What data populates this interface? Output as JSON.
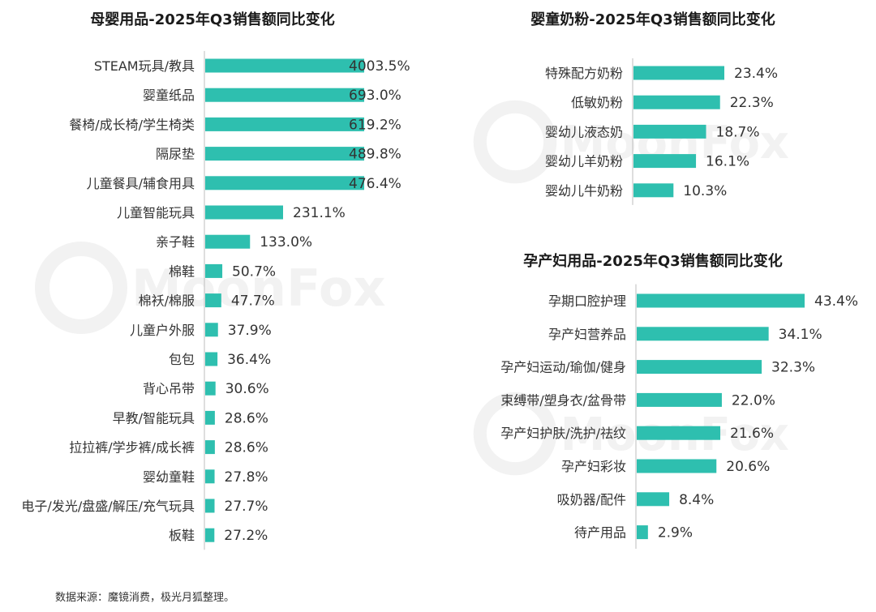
{
  "watermark_text": "MoonFox",
  "source_note": "数据来源：魔镜消费，极光月狐整理。",
  "colors": {
    "bar": "#2ebfaf",
    "axis": "#bdbdbd",
    "text": "#333333",
    "title": "#1a1a1a",
    "watermark": "#e8e8e8"
  },
  "chart_data": [
    {
      "type": "bar",
      "orientation": "horizontal",
      "title": "母婴用品-2025年Q3销售额同比变化",
      "categories": [
        "STEAM玩具/教具",
        "婴童纸品",
        "餐椅/成长椅/学生椅类",
        "隔尿垫",
        "儿童餐具/辅食用具",
        "儿童智能玩具",
        "亲子鞋",
        "棉鞋",
        "棉袄/棉服",
        "儿童户外服",
        "包包",
        "背心吊带",
        "早教/智能玩具",
        "拉拉裤/学步裤/成长裤",
        "婴幼童鞋",
        "电子/发光/盘盛/解压/充气玩具",
        "板鞋"
      ],
      "values": [
        4003.5,
        693.0,
        619.2,
        489.8,
        476.4,
        231.1,
        133.0,
        50.7,
        47.7,
        37.9,
        36.4,
        30.6,
        28.6,
        28.6,
        27.8,
        27.7,
        27.2
      ],
      "value_labels": [
        "4003.5%",
        "693.0%",
        "619.2%",
        "489.8%",
        "476.4%",
        "231.1%",
        "133.0%",
        "50.7%",
        "47.7%",
        "37.9%",
        "36.4%",
        "30.6%",
        "28.6%",
        "28.6%",
        "27.8%",
        "27.7%",
        "27.2%"
      ],
      "unit": "%",
      "axis_scale": "broken",
      "xlabel": "",
      "ylabel": ""
    },
    {
      "type": "bar",
      "orientation": "horizontal",
      "title": "婴童奶粉-2025年Q3销售额同比变化",
      "categories": [
        "特殊配方奶粉",
        "低敏奶粉",
        "婴幼儿液态奶",
        "婴幼儿羊奶粉",
        "婴幼儿牛奶粉"
      ],
      "values": [
        23.4,
        22.3,
        18.7,
        16.1,
        10.3
      ],
      "value_labels": [
        "23.4%",
        "22.3%",
        "18.7%",
        "16.1%",
        "10.3%"
      ],
      "unit": "%",
      "xlabel": "",
      "ylabel": ""
    },
    {
      "type": "bar",
      "orientation": "horizontal",
      "title": "孕产妇用品-2025年Q3销售额同比变化",
      "categories": [
        "孕期口腔护理",
        "孕产妇营养品",
        "孕产妇运动/瑜伽/健身",
        "束缚带/塑身衣/盆骨带",
        "孕产妇护肤/洗护/祛纹",
        "孕产妇彩妆",
        "吸奶器/配件",
        "待产用品"
      ],
      "values": [
        43.4,
        34.1,
        32.3,
        22.0,
        21.6,
        20.6,
        8.4,
        2.9
      ],
      "value_labels": [
        "43.4%",
        "34.1%",
        "32.3%",
        "22.0%",
        "21.6%",
        "20.6%",
        "8.4%",
        "2.9%"
      ],
      "unit": "%",
      "xlabel": "",
      "ylabel": ""
    }
  ]
}
